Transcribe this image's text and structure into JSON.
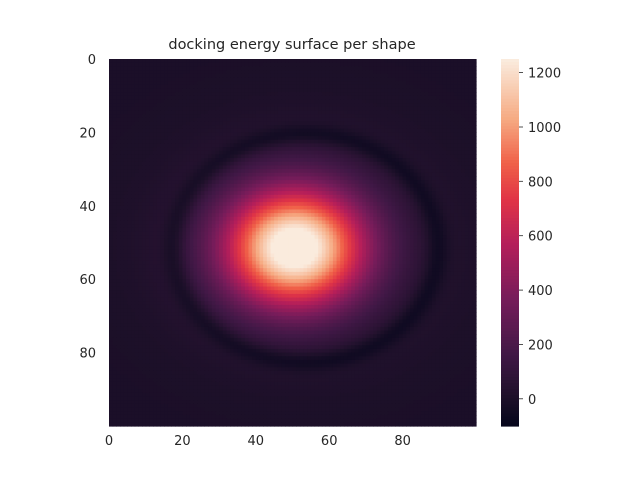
{
  "chart_data": {
    "type": "heatmap",
    "title": "docking energy surface per shape",
    "xlabel": "",
    "ylabel": "",
    "x_range": [
      0,
      99
    ],
    "y_range": [
      0,
      99
    ],
    "y_inverted": true,
    "x_ticks": [
      "0",
      "20",
      "40",
      "60",
      "80"
    ],
    "y_ticks": [
      "0",
      "20",
      "40",
      "60",
      "80"
    ],
    "grid": false,
    "colormap": "rocket",
    "colorbar": {
      "range": [
        -100,
        1250
      ],
      "ticks": [
        "0",
        "200",
        "400",
        "600",
        "800",
        "1000",
        "1200"
      ]
    },
    "field": {
      "background_value": 0,
      "peak": {
        "x": 50,
        "y": 51,
        "value": 1250
      },
      "approx_extent": {
        "x": [
          16,
          90
        ],
        "y": [
          20,
          82
        ]
      },
      "ring_min_value": -100
    }
  },
  "colors": {
    "background": "#1d1029",
    "low": "#03051a",
    "high": "#faebdd"
  }
}
